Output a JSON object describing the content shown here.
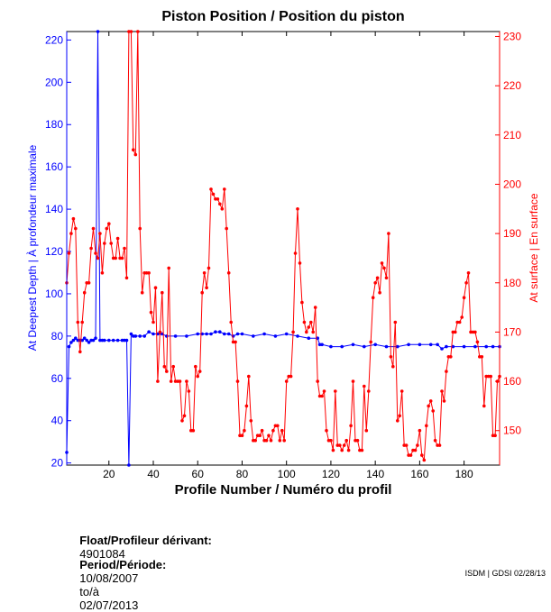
{
  "chart_data": {
    "type": "line",
    "title": "Piston Position / Position du piston",
    "xlabel": "Profile Number / Numéro du profil",
    "ylabel_left": "At Deepest Depth | À profondeur maximale",
    "ylabel_right": "At surface | En surface",
    "xlim": [
      1,
      196
    ],
    "x_ticks": [
      20,
      40,
      60,
      80,
      100,
      120,
      140,
      160,
      180
    ],
    "ylim_left": [
      19,
      224
    ],
    "y_ticks_left": [
      20,
      40,
      60,
      80,
      100,
      120,
      140,
      160,
      180,
      200,
      220
    ],
    "ylim_right": [
      143,
      231
    ],
    "y_ticks_right": [
      150,
      160,
      170,
      180,
      190,
      200,
      210,
      220,
      230
    ],
    "colors": {
      "left": "#0000ff",
      "right": "#ff0000"
    },
    "series": [
      {
        "name": "At Deepest Depth",
        "axis": "left",
        "color": "#0000ff",
        "x": [
          1,
          2,
          3,
          4,
          5,
          6,
          7,
          8,
          9,
          10,
          11,
          12,
          13,
          14,
          15,
          16,
          17,
          18,
          20,
          22,
          24,
          26,
          27,
          28,
          29,
          30,
          31,
          32,
          34,
          36,
          38,
          40,
          42,
          44,
          46,
          50,
          55,
          60,
          62,
          64,
          66,
          68,
          70,
          72,
          74,
          76,
          78,
          80,
          85,
          90,
          95,
          100,
          105,
          110,
          114,
          115,
          116,
          120,
          125,
          130,
          135,
          140,
          145,
          150,
          155,
          160,
          165,
          168,
          170,
          172,
          175,
          180,
          185,
          190,
          193,
          196
        ],
        "y": [
          25,
          75,
          77,
          78,
          79,
          78,
          78,
          78,
          79,
          78,
          77,
          78,
          78,
          79,
          224,
          78,
          78,
          78,
          78,
          78,
          78,
          78,
          78,
          78,
          19,
          81,
          80,
          80,
          80,
          80,
          82,
          81,
          81,
          81,
          80,
          80,
          80,
          81,
          81,
          81,
          81,
          82,
          82,
          81,
          81,
          80,
          81,
          81,
          80,
          81,
          80,
          81,
          80,
          79,
          79,
          76,
          76,
          75,
          75,
          76,
          75,
          76,
          75,
          75,
          76,
          76,
          76,
          76,
          74,
          75,
          75,
          75,
          75,
          75,
          75,
          75
        ]
      },
      {
        "name": "At surface",
        "axis": "right",
        "color": "#ff0000",
        "x": [
          1,
          2,
          3,
          4,
          5,
          6,
          7,
          8,
          9,
          10,
          11,
          12,
          13,
          14,
          15,
          16,
          17,
          18,
          19,
          20,
          21,
          22,
          23,
          24,
          25,
          26,
          27,
          28,
          29,
          30,
          31,
          32,
          33,
          34,
          35,
          36,
          37,
          38,
          39,
          40,
          41,
          42,
          43,
          44,
          45,
          46,
          47,
          48,
          49,
          50,
          51,
          52,
          53,
          54,
          55,
          56,
          57,
          58,
          59,
          60,
          61,
          62,
          63,
          64,
          65,
          66,
          67,
          68,
          69,
          70,
          71,
          72,
          73,
          74,
          75,
          76,
          77,
          78,
          79,
          80,
          81,
          82,
          83,
          84,
          85,
          86,
          87,
          88,
          89,
          90,
          91,
          92,
          93,
          94,
          95,
          96,
          97,
          98,
          99,
          100,
          101,
          102,
          103,
          104,
          105,
          106,
          107,
          108,
          109,
          110,
          111,
          112,
          113,
          114,
          115,
          116,
          117,
          118,
          119,
          120,
          121,
          122,
          123,
          124,
          125,
          126,
          127,
          128,
          129,
          130,
          131,
          132,
          133,
          134,
          135,
          136,
          137,
          138,
          139,
          140,
          141,
          142,
          143,
          144,
          145,
          146,
          147,
          148,
          149,
          150,
          151,
          152,
          153,
          154,
          155,
          156,
          157,
          158,
          159,
          160,
          161,
          162,
          163,
          164,
          165,
          166,
          167,
          168,
          169,
          170,
          171,
          172,
          173,
          174,
          175,
          176,
          177,
          178,
          179,
          180,
          181,
          182,
          183,
          184,
          185,
          186,
          187,
          188,
          189,
          190,
          191,
          192,
          193,
          194,
          195,
          196
        ],
        "y": [
          180,
          186,
          190,
          193,
          191,
          172,
          166,
          172,
          178,
          180,
          180,
          187,
          191,
          186,
          185,
          190,
          182,
          188,
          191,
          192,
          188,
          185,
          185,
          189,
          185,
          185,
          187,
          181,
          231,
          231,
          207,
          206,
          231,
          191,
          178,
          182,
          182,
          182,
          174,
          172,
          179,
          160,
          170,
          178,
          163,
          162,
          183,
          160,
          163,
          160,
          160,
          160,
          152,
          153,
          160,
          158,
          150,
          150,
          163,
          161,
          162,
          178,
          182,
          179,
          183,
          199,
          198,
          197,
          197,
          196,
          195,
          199,
          191,
          182,
          172,
          168,
          168,
          160,
          149,
          149,
          150,
          155,
          161,
          152,
          148,
          148,
          149,
          149,
          150,
          148,
          148,
          149,
          148,
          150,
          151,
          151,
          148,
          150,
          148,
          160,
          161,
          161,
          170,
          186,
          195,
          184,
          176,
          172,
          170,
          171,
          172,
          170,
          175,
          160,
          157,
          157,
          158,
          150,
          148,
          148,
          146,
          158,
          147,
          147,
          146,
          147,
          148,
          146,
          151,
          160,
          148,
          148,
          146,
          146,
          159,
          150,
          158,
          168,
          177,
          180,
          181,
          178,
          184,
          183,
          181,
          190,
          165,
          163,
          172,
          152,
          153,
          158,
          147,
          147,
          145,
          145,
          146,
          146,
          147,
          150,
          145,
          144,
          151,
          155,
          156,
          154,
          148,
          147,
          147,
          158,
          156,
          162,
          165,
          165,
          170,
          170,
          172,
          172,
          173,
          177,
          180,
          182,
          170,
          170,
          170,
          168,
          165,
          165,
          155,
          161,
          161,
          161,
          149,
          149,
          160,
          161
        ]
      }
    ]
  },
  "info": {
    "float_label": "Float/Profileur dérivant:",
    "float_value": "4901084",
    "period_label": "Period/Période:",
    "period_start": "10/08/2007",
    "period_sep": "to/à",
    "period_end": "02/07/2013"
  },
  "credit": "ISDM | GDSI 02/28/13"
}
